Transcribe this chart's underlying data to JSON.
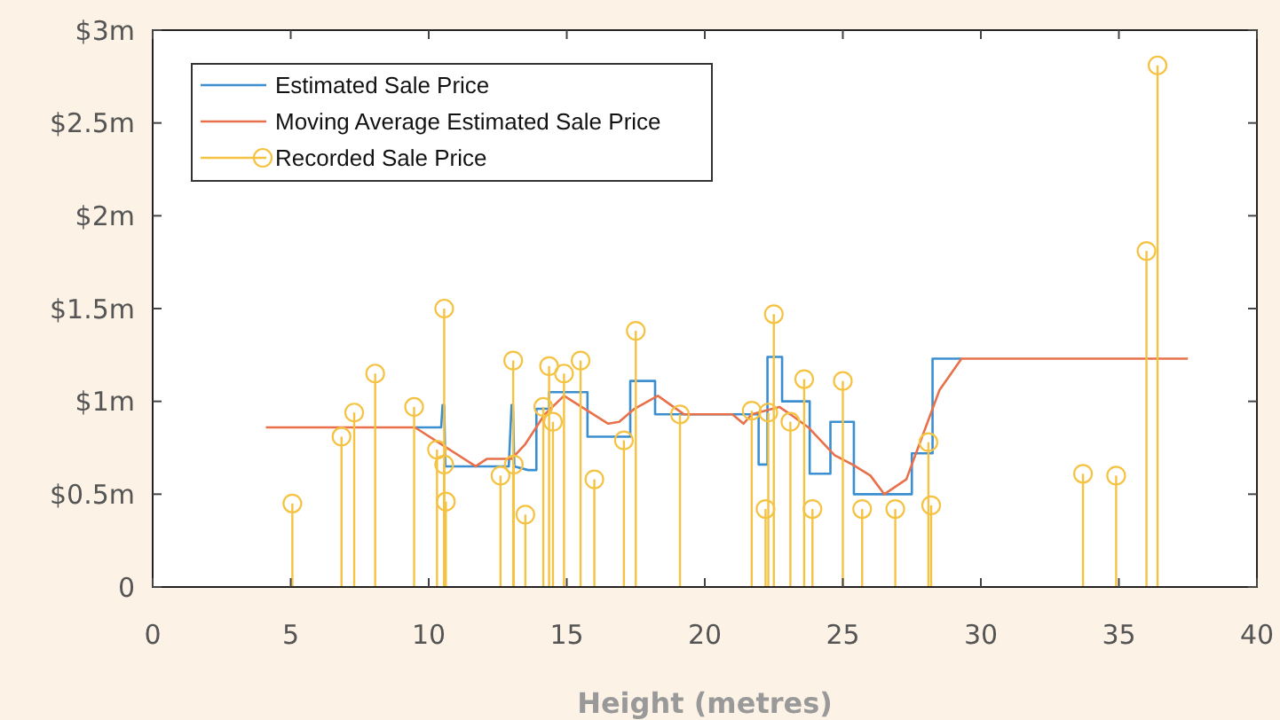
{
  "chart_data": {
    "type": "line",
    "xlabel": "Height (metres)",
    "xlim": [
      0,
      40
    ],
    "xticks": [
      0,
      5,
      10,
      15,
      20,
      25,
      30,
      35,
      40
    ],
    "ylim": [
      0,
      3
    ],
    "yticks": [
      {
        "value": 0,
        "label": "0"
      },
      {
        "value": 0.5,
        "label": "$0.5m"
      },
      {
        "value": 1,
        "label": "$1m"
      },
      {
        "value": 1.5,
        "label": "$1.5m"
      },
      {
        "value": 2,
        "label": "$2m"
      },
      {
        "value": 2.5,
        "label": "$2.5m"
      },
      {
        "value": 3,
        "label": "$3m"
      }
    ],
    "grid": false,
    "legend": "top left",
    "series": [
      {
        "name": "Estimated Sale Price",
        "color": "#3b8fd0",
        "x": [
          9.5,
          10.45,
          10.5,
          10.56,
          10.6,
          12.9,
          13.0,
          13.05,
          13.1,
          13.6,
          13.9,
          13.9,
          14.36,
          14.36,
          15.75,
          15.75,
          17.3,
          17.3,
          18.2,
          18.2,
          21.95,
          21.95,
          22.27,
          22.27,
          22.8,
          22.8,
          23.8,
          23.8,
          24.55,
          24.55,
          25.4,
          25.4,
          27.5,
          27.5,
          28.25,
          28.25,
          29.3
        ],
        "values": [
          0.86,
          0.86,
          0.98,
          0.98,
          0.65,
          0.65,
          0.98,
          0.98,
          0.65,
          0.63,
          0.63,
          0.96,
          0.96,
          1.05,
          1.05,
          0.81,
          0.81,
          1.11,
          1.11,
          0.93,
          0.93,
          0.66,
          0.66,
          1.24,
          1.24,
          1.0,
          1.0,
          0.61,
          0.61,
          0.89,
          0.89,
          0.5,
          0.5,
          0.72,
          0.72,
          1.23,
          1.23
        ]
      },
      {
        "name": "Moving Average Estimated Sale Price",
        "color": "#e8704a",
        "x": [
          4.1,
          9.5,
          11.7,
          12.1,
          13.0,
          13.5,
          14.2,
          14.9,
          16.5,
          16.9,
          17.45,
          18.3,
          19.25,
          21.0,
          21.4,
          21.7,
          22.7,
          23.1,
          23.75,
          24.7,
          25.35,
          26.0,
          26.5,
          27.3,
          28.5,
          29.3,
          37.5
        ],
        "values": [
          0.86,
          0.86,
          0.65,
          0.69,
          0.69,
          0.77,
          0.93,
          1.03,
          0.88,
          0.89,
          0.96,
          1.03,
          0.93,
          0.93,
          0.88,
          0.93,
          0.97,
          0.93,
          0.86,
          0.71,
          0.66,
          0.6,
          0.5,
          0.58,
          1.06,
          1.23,
          1.23
        ]
      },
      {
        "name": "Recorded Sale Price",
        "type": "lollipop",
        "color": "#f5c242",
        "marker": "circle",
        "x": [
          5.06,
          6.84,
          7.3,
          8.06,
          9.47,
          10.3,
          10.56,
          10.56,
          10.62,
          12.6,
          13.06,
          13.08,
          13.5,
          14.15,
          14.36,
          14.5,
          14.9,
          15.5,
          16.0,
          17.07,
          17.5,
          19.1,
          21.7,
          22.2,
          22.3,
          22.5,
          23.1,
          23.6,
          23.9,
          25.0,
          25.7,
          26.9,
          28.1,
          28.2,
          33.7,
          34.9,
          36.0,
          36.4
        ],
        "values": [
          0.45,
          0.81,
          0.94,
          1.15,
          0.97,
          0.74,
          1.5,
          0.66,
          0.46,
          0.6,
          1.22,
          0.66,
          0.39,
          0.97,
          1.19,
          0.89,
          1.15,
          1.22,
          0.58,
          0.79,
          1.38,
          0.93,
          0.95,
          0.42,
          0.94,
          1.47,
          0.89,
          1.12,
          0.42,
          1.11,
          0.42,
          0.42,
          0.78,
          0.44,
          0.61,
          0.6,
          1.81,
          2.81
        ]
      }
    ]
  }
}
